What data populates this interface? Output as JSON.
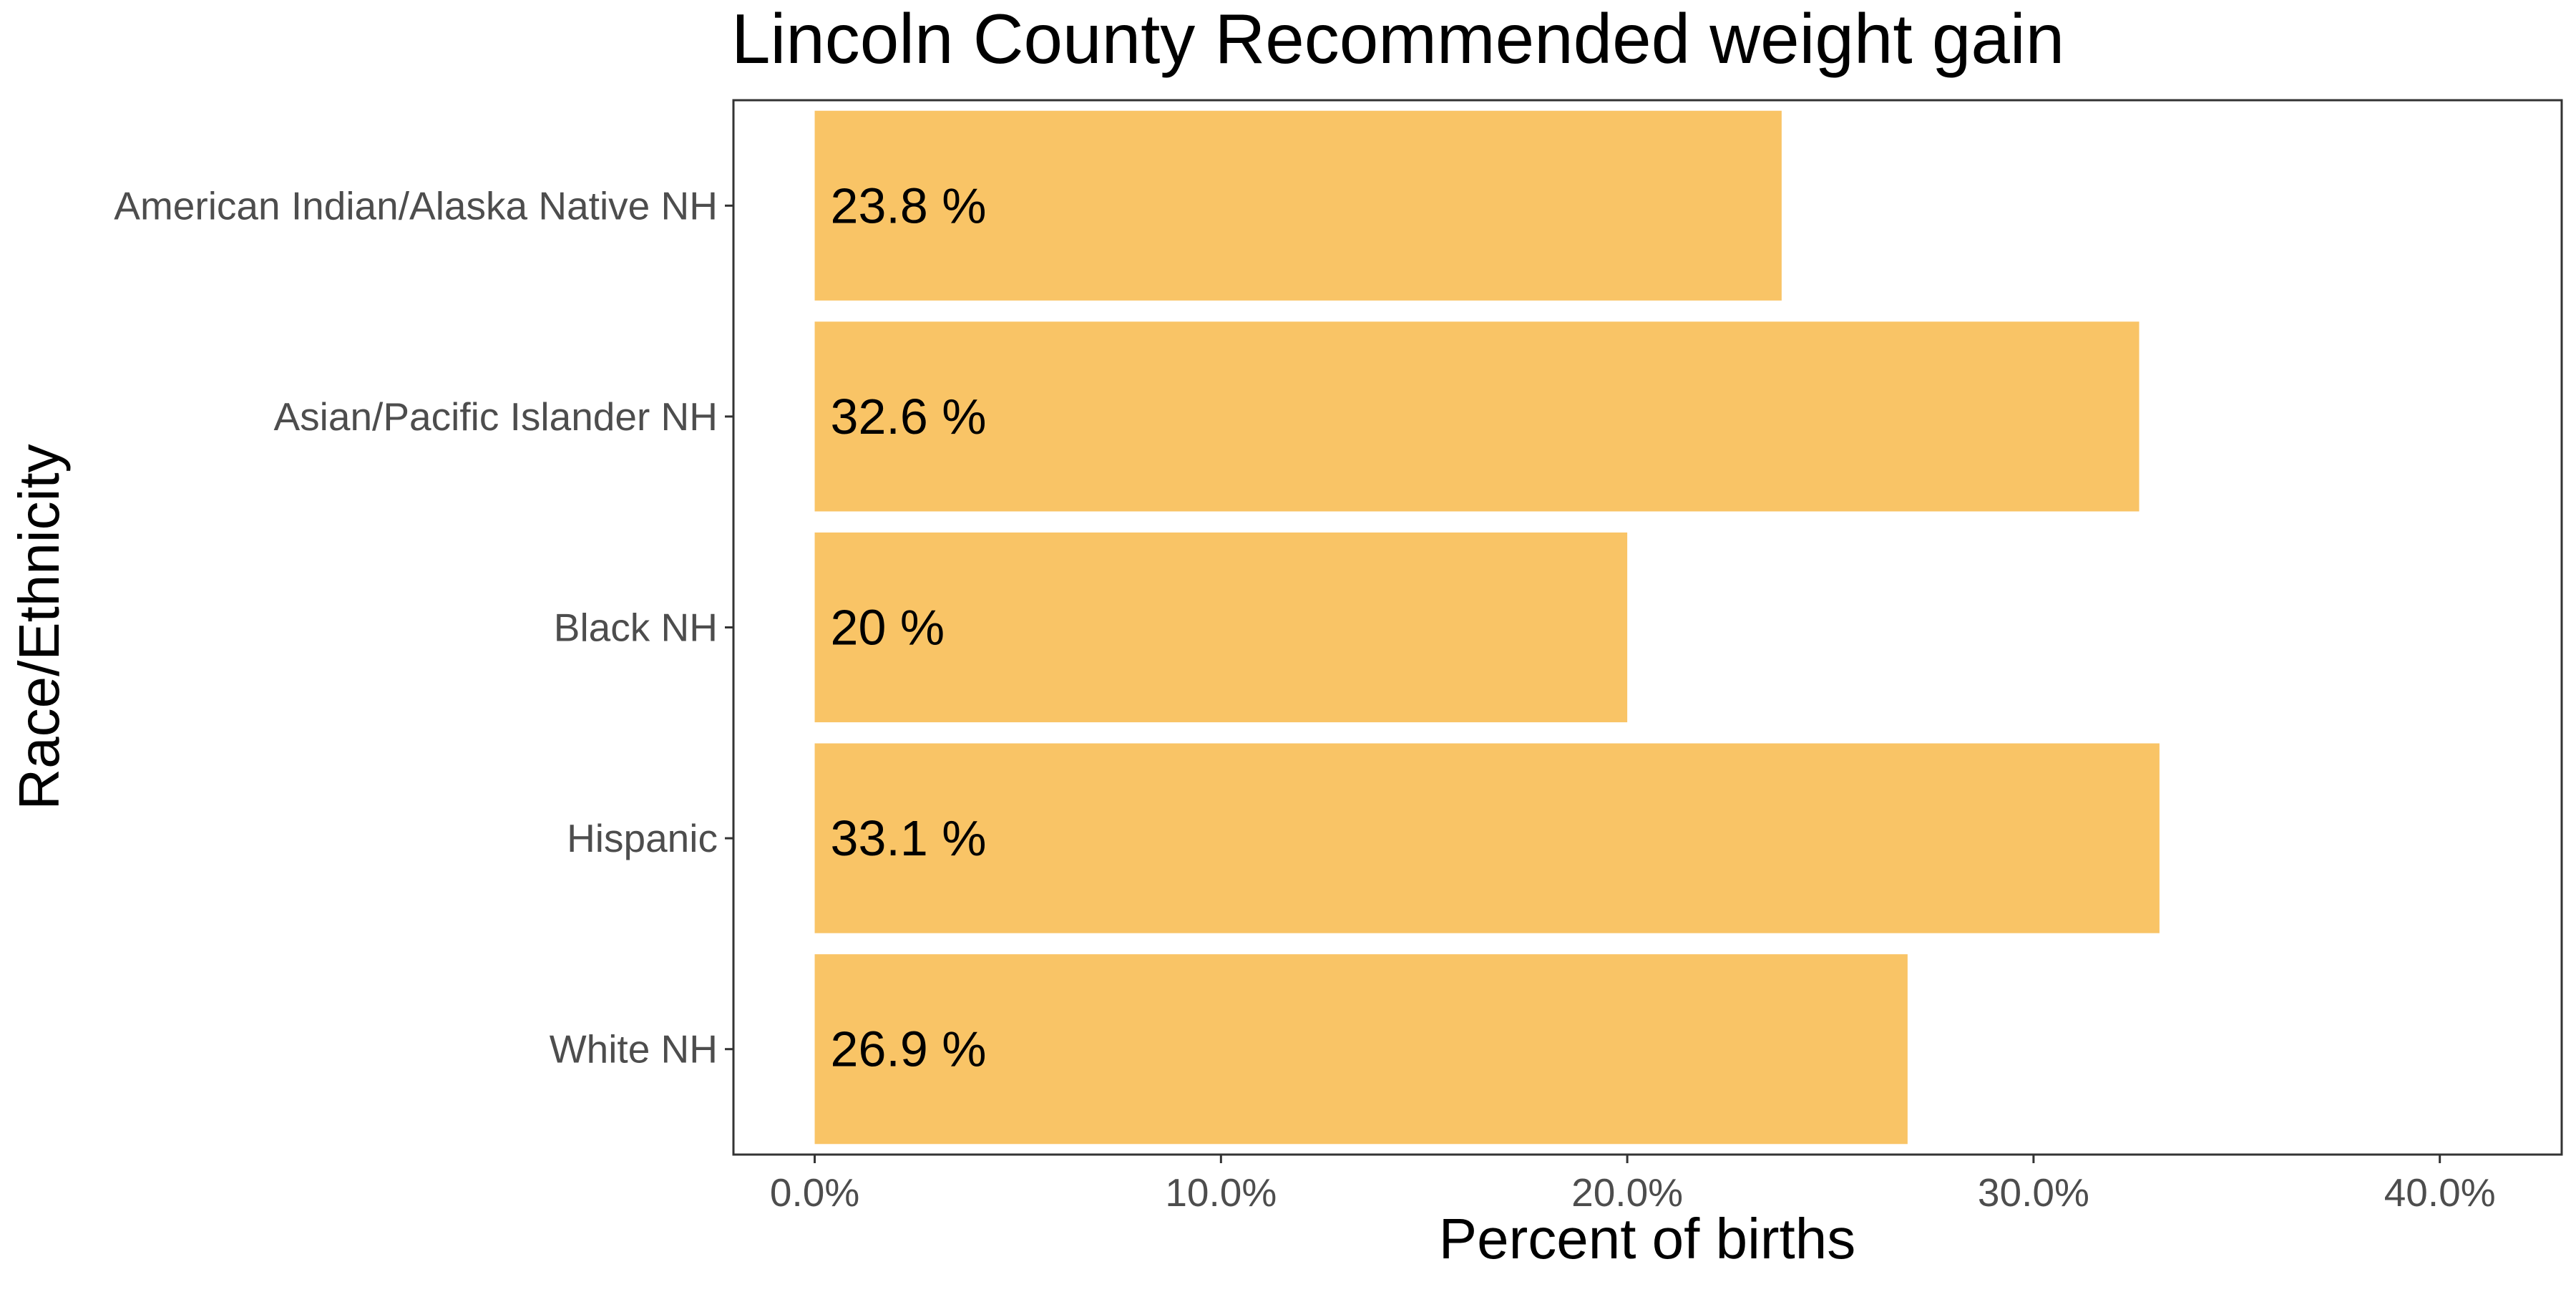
{
  "chart_data": {
    "type": "bar",
    "orientation": "horizontal",
    "title": "Lincoln County Recommended weight gain",
    "xlabel": "Percent of births",
    "ylabel": "Race/Ethnicity",
    "categories": [
      "American Indian/Alaska Native NH",
      "Asian/Pacific Islander NH",
      "Black NH",
      "Hispanic",
      "White NH"
    ],
    "values": [
      23.8,
      32.6,
      20.0,
      33.1,
      26.9
    ],
    "data_labels": [
      "23.8 %",
      "32.6 %",
      "20 %",
      "33.1 %",
      "26.9 %"
    ],
    "xlim": [
      -2,
      43
    ],
    "xticks": [
      0,
      10,
      20,
      30,
      40
    ],
    "xtick_labels": [
      "0.0%",
      "10.0%",
      "20.0%",
      "30.0%",
      "40.0%"
    ],
    "grid": false,
    "legend": "none",
    "bar_color": "#F9C466",
    "text_color": "#000000",
    "tick_label_color": "#4D4D4D",
    "panel_border_color": "#333333"
  }
}
